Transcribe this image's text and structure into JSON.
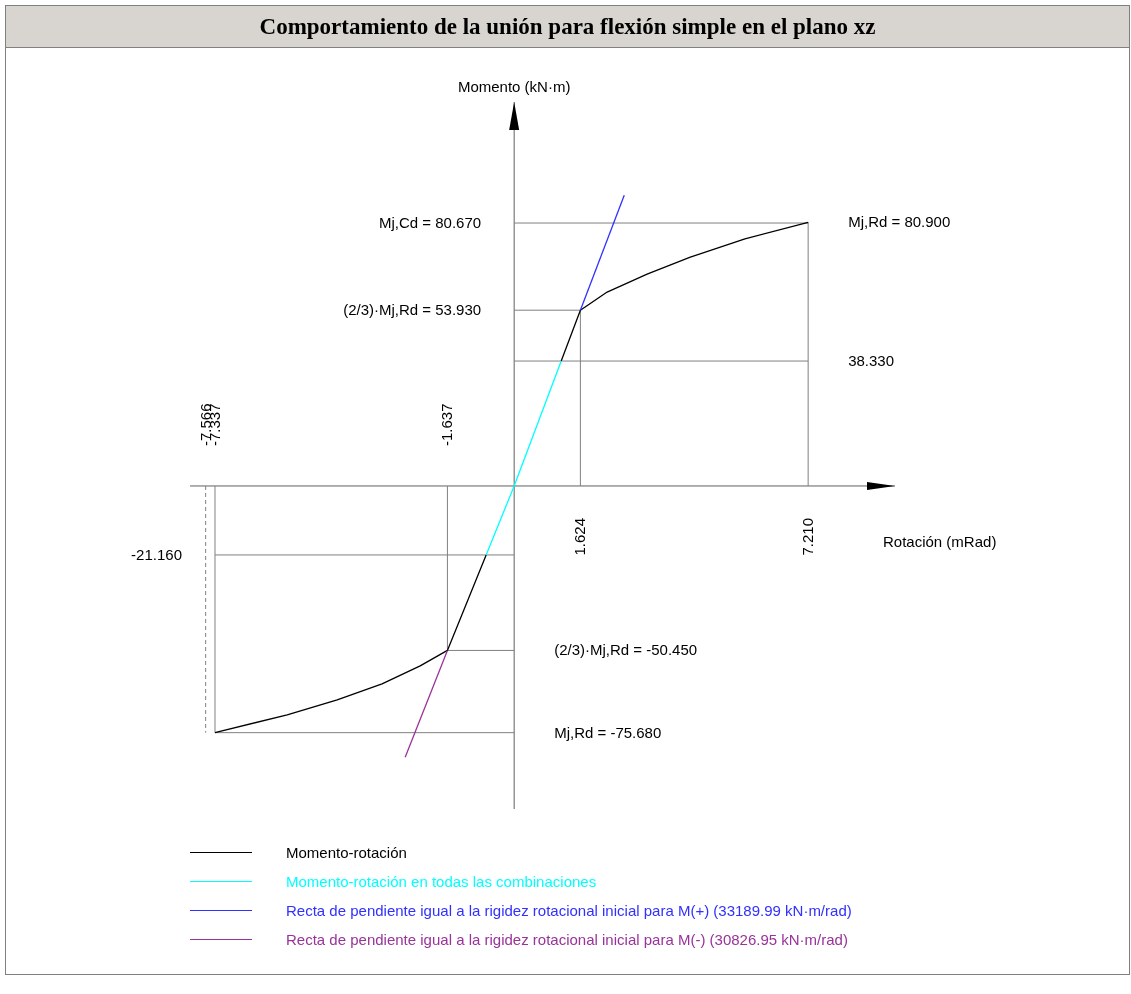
{
  "chart_data": {
    "type": "line",
    "title": "Comportamiento de la unión para flexión simple en el plano xz",
    "xlabel": "Rotación  (mRad)",
    "ylabel": "Momento  (kN·m)",
    "xlim": [
      -7.95,
      9.34
    ],
    "x2lim": [
      -7.95,
      9.34
    ],
    "ylim": [
      -99.1,
      117.8
    ],
    "marker": "none",
    "legend": "bottom",
    "xticks": [
      1.624,
      {
        "value": 7.21,
        "label": "7.210"
      }
    ],
    "x2ticks": [
      -7.566,
      -7.337,
      -1.637
    ],
    "yticks": [
      {
        "value": 80.67,
        "label": "80.670"
      },
      {
        "value": 53.93,
        "label": "53.930"
      }
    ],
    "series": [
      {
        "name": "Momento-rotación",
        "color": "#000000",
        "x": [
          -7.337,
          -5.566,
          -4.34,
          -3.24,
          -2.305,
          -1.637,
          -0.687,
          0,
          1.154,
          1.624,
          2.28,
          3.26,
          4.32,
          5.66,
          7.21
        ],
        "values": [
          -75.68,
          -70.2,
          -65.6,
          -60.7,
          -55.2,
          -50.45,
          -21.16,
          null,
          38.33,
          53.93,
          59.5,
          65.0,
          70.2,
          75.8,
          80.9
        ]
      },
      {
        "name": "Momento-rotación en todas las combinaciones",
        "color": "#00ffff",
        "x": [
          -0.687,
          0,
          1.154
        ],
        "values": [
          -21.16,
          0,
          38.33
        ]
      },
      {
        "name": "Recta de pendiente igual a la rigidez rotacional inicial para M(+) (33189.99 kN·m/rad)",
        "color": "#3030ff",
        "x": [
          1.624,
          2.7
        ],
        "values": [
          53.93,
          89.2
        ]
      },
      {
        "name": "Recta de pendiente igual a la rigidez rotacional inicial para M(-) (30826.95 kN·m/rad)",
        "color": "#993399",
        "x": [
          -1.637,
          -2.673
        ],
        "values": [
          -50.45,
          -83.2
        ]
      }
    ],
    "ref_lines": [
      {
        "axis": "x",
        "value": -7.566,
        "color": "#808080",
        "line_style": "dashed"
      },
      {
        "axis": "x",
        "value": -7.337,
        "color": "#808080"
      },
      {
        "axis": "x",
        "value": -1.637,
        "color": "#808080"
      },
      {
        "axis": "x",
        "value": 1.624,
        "color": "#808080"
      },
      {
        "axis": "x",
        "value": 7.21,
        "color": "#808080"
      },
      {
        "axis": "y",
        "value": 80.67,
        "color": "#808080"
      },
      {
        "axis": "y",
        "value": 53.93,
        "color": "#808080"
      },
      {
        "axis": "y",
        "value": 38.33,
        "color": "#808080"
      },
      {
        "axis": "y",
        "value": -21.16,
        "color": "#808080"
      },
      {
        "axis": "y",
        "value": -50.45,
        "color": "#808080"
      },
      {
        "axis": "y",
        "value": -75.68,
        "color": "#808080"
      }
    ],
    "annotations": [
      "Mj,Cd =",
      "(2/3)·Mj,Rd =",
      {
        "text": "Mj,Rd = 80.900",
        "x": 7.21,
        "y": 80.9
      },
      {
        "text": "38.330",
        "x": 7.21,
        "y": 38.33
      },
      {
        "text": "-21.160",
        "x": -7.337,
        "y": -21.16
      },
      {
        "text": "(2/3)·Mj,Rd = -50.450",
        "x": 0,
        "y": -50.45
      },
      {
        "text": "Mj,Rd = -75.680",
        "x": 0,
        "y": -75.68
      }
    ]
  }
}
